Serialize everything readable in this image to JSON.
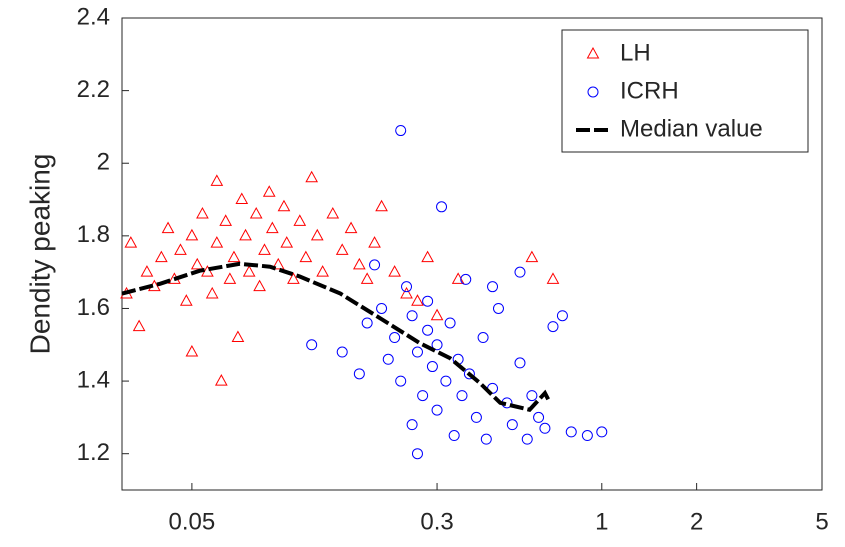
{
  "chart_data": {
    "type": "scatter",
    "y_label": "Dendity peaking",
    "xscale": "log",
    "xlim": [
      0.03,
      5
    ],
    "xticks": [
      0.05,
      0.3,
      1,
      2,
      5
    ],
    "ylim": [
      1.1,
      2.4
    ],
    "yticks": [
      1.2,
      1.4,
      1.6,
      1.8,
      2,
      2.2,
      2.4
    ],
    "legend": "upper right",
    "series": [
      {
        "name": "LH",
        "color": "#ff0000",
        "marker": "triangle",
        "x": [
          0.031,
          0.032,
          0.034,
          0.036,
          0.038,
          0.04,
          0.042,
          0.044,
          0.046,
          0.048,
          0.05,
          0.05,
          0.052,
          0.054,
          0.056,
          0.058,
          0.06,
          0.06,
          0.062,
          0.064,
          0.066,
          0.068,
          0.07,
          0.072,
          0.074,
          0.076,
          0.08,
          0.082,
          0.085,
          0.088,
          0.09,
          0.094,
          0.098,
          0.1,
          0.105,
          0.11,
          0.115,
          0.12,
          0.125,
          0.13,
          0.14,
          0.15,
          0.16,
          0.17,
          0.18,
          0.19,
          0.2,
          0.22,
          0.24,
          0.26,
          0.28,
          0.3,
          0.35,
          0.6,
          0.7
        ],
        "values": [
          1.64,
          1.78,
          1.55,
          1.7,
          1.66,
          1.74,
          1.82,
          1.68,
          1.76,
          1.62,
          1.8,
          1.48,
          1.72,
          1.86,
          1.7,
          1.64,
          1.78,
          1.95,
          1.4,
          1.84,
          1.68,
          1.74,
          1.52,
          1.9,
          1.8,
          1.7,
          1.86,
          1.66,
          1.76,
          1.92,
          1.82,
          1.72,
          1.88,
          1.78,
          1.68,
          1.84,
          1.74,
          1.96,
          1.8,
          1.7,
          1.86,
          1.76,
          1.82,
          1.72,
          1.68,
          1.78,
          1.88,
          1.7,
          1.64,
          1.62,
          1.74,
          1.58,
          1.68,
          1.74,
          1.68
        ]
      },
      {
        "name": "ICRH",
        "color": "#0000ff",
        "marker": "circle",
        "x": [
          0.12,
          0.15,
          0.17,
          0.18,
          0.19,
          0.2,
          0.21,
          0.22,
          0.23,
          0.23,
          0.24,
          0.25,
          0.25,
          0.26,
          0.27,
          0.28,
          0.28,
          0.29,
          0.3,
          0.3,
          0.31,
          0.32,
          0.33,
          0.34,
          0.35,
          0.36,
          0.37,
          0.38,
          0.4,
          0.42,
          0.43,
          0.45,
          0.47,
          0.5,
          0.52,
          0.55,
          0.58,
          0.6,
          0.63,
          0.66,
          0.7,
          0.75,
          0.8,
          0.9,
          1.0,
          0.26,
          0.45,
          0.55
        ],
        "values": [
          1.5,
          1.48,
          1.42,
          1.56,
          1.72,
          1.6,
          1.46,
          1.52,
          2.09,
          1.4,
          1.66,
          1.58,
          1.28,
          1.48,
          1.36,
          1.54,
          1.62,
          1.44,
          1.32,
          1.5,
          1.88,
          1.4,
          1.56,
          1.25,
          1.46,
          1.36,
          1.68,
          1.42,
          1.3,
          1.52,
          1.24,
          1.38,
          1.6,
          1.34,
          1.28,
          1.45,
          1.24,
          1.36,
          1.3,
          1.27,
          1.55,
          1.58,
          1.26,
          1.25,
          1.26,
          1.2,
          1.66,
          1.7
        ]
      },
      {
        "name": "Median value",
        "color": "#000000",
        "marker": "dashed-line",
        "x": [
          0.03,
          0.0396,
          0.053,
          0.071,
          0.0885,
          0.11,
          0.148,
          0.198,
          0.265,
          0.33,
          0.41,
          0.476,
          0.59,
          0.66,
          0.685
        ],
        "values": [
          1.641,
          1.668,
          1.704,
          1.723,
          1.715,
          1.688,
          1.641,
          1.573,
          1.504,
          1.463,
          1.395,
          1.34,
          1.321,
          1.367,
          1.34
        ]
      }
    ]
  }
}
